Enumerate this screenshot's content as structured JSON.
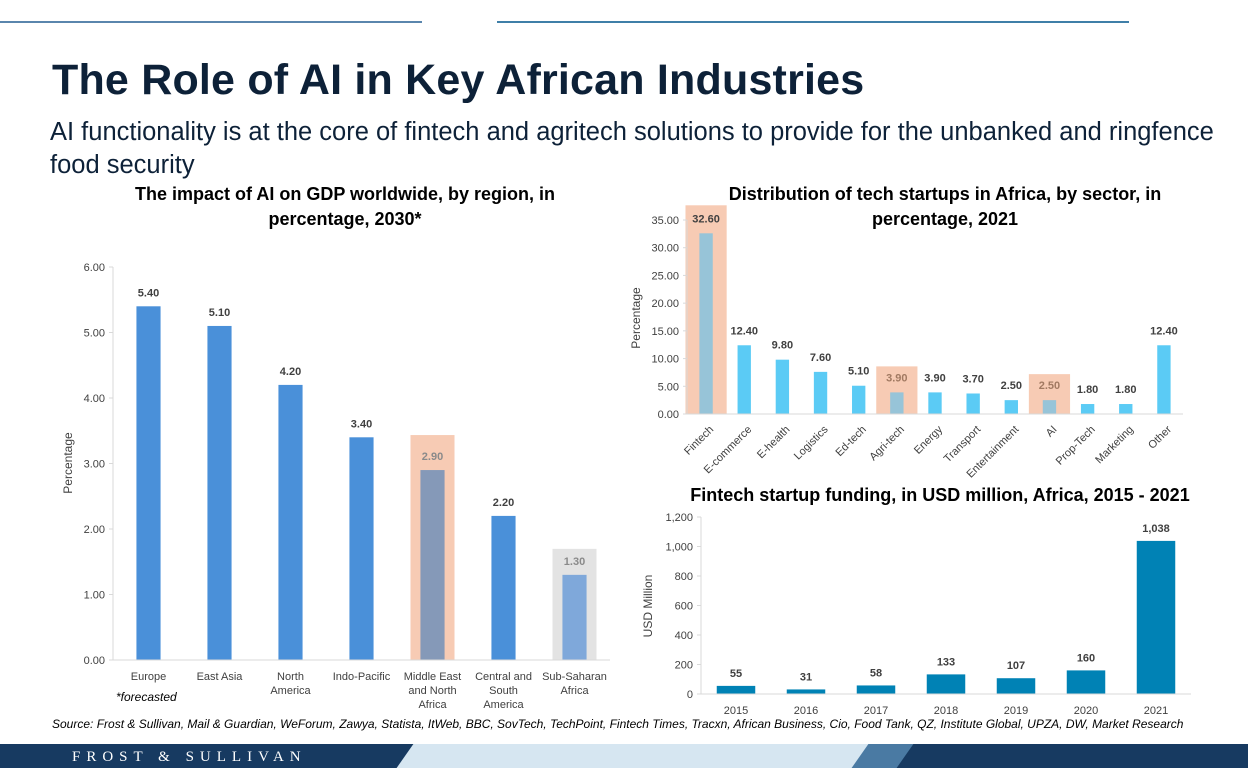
{
  "title": "The Role of AI in Key African Industries",
  "subtitle": "AI functionality  is at the core of fintech and agritech solutions to provide for the unbanked and ringfence food security",
  "brand": "FROST & SULLIVAN",
  "colors": {
    "primary_blue": "#4a90d9",
    "light_blue": "#5bcbf5",
    "teal": "#0082b5",
    "highlight_peach": "#f7cbb4",
    "highlight_grey": "#e3e3e3",
    "navy": "#0d2138",
    "footer_navy": "#173a61",
    "footer_mid": "#2d5f8a",
    "footer_light": "#d6e6f1"
  },
  "chart_data": [
    {
      "type": "bar",
      "title": "The impact of AI on GDP worldwide, by region, in percentage, 2030*",
      "ylabel": "Percentage",
      "ylim": [
        0,
        6
      ],
      "yticks": [
        "0.00",
        "1.00",
        "2.00",
        "3.00",
        "4.00",
        "5.00",
        "6.00"
      ],
      "categories": [
        "Europe",
        "East Asia",
        "North America",
        "Indo-Pacific",
        "Middle East and North Africa",
        "Central and South America",
        "Sub-Saharan Africa"
      ],
      "values": [
        5.4,
        5.1,
        4.2,
        3.4,
        2.9,
        2.2,
        1.3
      ],
      "data_labels": [
        "5.40",
        "5.10",
        "4.20",
        "3.40",
        "2.90",
        "2.20",
        "1.30"
      ],
      "highlighted": [
        "Middle East and North Africa",
        "Sub-Saharan Africa"
      ],
      "note": "*forecasted"
    },
    {
      "type": "bar",
      "title": "Distribution of tech startups in Africa, by sector, in percentage, 2021",
      "ylabel": "Percentage",
      "ylim": [
        0,
        35
      ],
      "yticks": [
        "0.00",
        "5.00",
        "10.00",
        "15.00",
        "20.00",
        "25.00",
        "30.00",
        "35.00"
      ],
      "categories": [
        "Fintech",
        "E-commerce",
        "E-health",
        "Logistics",
        "Ed-tech",
        "Agri-tech",
        "Energy",
        "Transport",
        "Entertainment",
        "AI",
        "Prop-Tech",
        "Marketing",
        "Other"
      ],
      "values": [
        32.6,
        12.4,
        9.8,
        7.6,
        5.1,
        3.9,
        3.9,
        3.7,
        2.5,
        2.5,
        1.8,
        1.8,
        12.4
      ],
      "data_labels": [
        "32.60",
        "12.40",
        "9.80",
        "7.60",
        "5.10",
        "3.90",
        "3.90",
        "3.70",
        "2.50",
        "2.50",
        "1.80",
        "1.80",
        "12.40"
      ],
      "highlighted": [
        "Fintech",
        "Agri-tech",
        "AI"
      ]
    },
    {
      "type": "bar",
      "title": "Fintech startup funding, in USD million, Africa, 2015 - 2021",
      "ylabel": "USD Million",
      "ylim": [
        0,
        1200
      ],
      "yticks": [
        "0",
        "200",
        "400",
        "600",
        "800",
        "1,000",
        "1,200"
      ],
      "categories": [
        "2015",
        "2016",
        "2017",
        "2018",
        "2019",
        "2020",
        "2021"
      ],
      "values": [
        55,
        31,
        58,
        133,
        107,
        160,
        1038
      ],
      "data_labels": [
        "55",
        "31",
        "58",
        "133",
        "107",
        "160",
        "1,038"
      ]
    }
  ],
  "source": "Source: Frost & Sullivan, Mail & Guardian, WeForum, Zawya, Statista, ItWeb, BBC, SovTech, TechPoint, Fintech Times, Tracxn, African Business, Cio, Food Tank, QZ, Institute Global, UPZA, DW, Market Research"
}
